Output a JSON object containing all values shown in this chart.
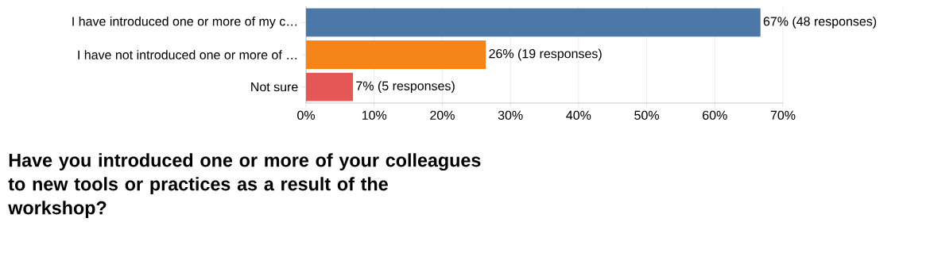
{
  "chart_data": {
    "type": "bar",
    "orientation": "horizontal",
    "title": "Have you introduced one or more of your colleagues to new tools or practices as a result of the workshop?",
    "categories": [
      "I have introduced one or more of my c…",
      "I have not introduced one or more of …",
      "Not sure"
    ],
    "values": [
      66.7,
      26.4,
      6.9
    ],
    "colors": [
      "#4c78a8",
      "#f58518",
      "#e45756"
    ],
    "value_labels": [
      "67% (48 responses)",
      "26% (19 responses)",
      "7% (5 responses)"
    ],
    "xlim": [
      0,
      70
    ],
    "xticks": [
      {
        "value": 0,
        "label": "0%"
      },
      {
        "value": 10,
        "label": "10%"
      },
      {
        "value": 20,
        "label": "20%"
      },
      {
        "value": 30,
        "label": "30%"
      },
      {
        "value": 40,
        "label": "40%"
      },
      {
        "value": 50,
        "label": "50%"
      },
      {
        "value": 60,
        "label": "60%"
      },
      {
        "value": 70,
        "label": "70%"
      }
    ],
    "grid": "x"
  }
}
